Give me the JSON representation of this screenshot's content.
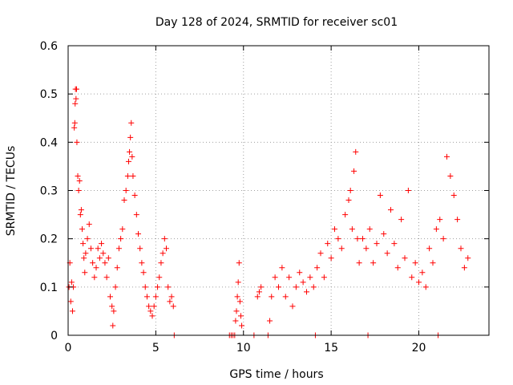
{
  "chart_data": {
    "type": "scatter",
    "title": "Day 128 of 2024, SRMTID for receiver sc01",
    "xlabel": "GPS time / hours",
    "ylabel": "SRMTID / TECUs",
    "xlim": [
      0,
      24
    ],
    "ylim": [
      0,
      0.6
    ],
    "xticks": [
      0,
      5,
      10,
      15,
      20
    ],
    "yticks": [
      0,
      0.1,
      0.2,
      0.3,
      0.4,
      0.5,
      0.6
    ],
    "xtick_labels": [
      "0",
      "5",
      "10",
      "15",
      "20"
    ],
    "ytick_labels": [
      "0",
      "0.1",
      "0.2",
      "0.3",
      "0.4",
      "0.5",
      "0.6"
    ],
    "grid": true,
    "marker": "+",
    "color": "#ff0000",
    "series": [
      {
        "name": "SRMTID",
        "points": [
          [
            0.05,
            0.1
          ],
          [
            0.1,
            0.15
          ],
          [
            0.15,
            0.07
          ],
          [
            0.2,
            0.11
          ],
          [
            0.25,
            0.05
          ],
          [
            0.3,
            0.1
          ],
          [
            0.35,
            0.43
          ],
          [
            0.38,
            0.44
          ],
          [
            0.4,
            0.48
          ],
          [
            0.42,
            0.51
          ],
          [
            0.45,
            0.49
          ],
          [
            0.48,
            0.51
          ],
          [
            0.5,
            0.4
          ],
          [
            0.55,
            0.33
          ],
          [
            0.6,
            0.3
          ],
          [
            0.65,
            0.32
          ],
          [
            0.7,
            0.25
          ],
          [
            0.75,
            0.26
          ],
          [
            0.8,
            0.22
          ],
          [
            0.85,
            0.19
          ],
          [
            0.9,
            0.16
          ],
          [
            0.95,
            0.13
          ],
          [
            1.0,
            0.17
          ],
          [
            1.1,
            0.2
          ],
          [
            1.2,
            0.23
          ],
          [
            1.3,
            0.18
          ],
          [
            1.4,
            0.15
          ],
          [
            1.5,
            0.12
          ],
          [
            1.6,
            0.14
          ],
          [
            1.7,
            0.18
          ],
          [
            1.8,
            0.16
          ],
          [
            1.9,
            0.19
          ],
          [
            2.0,
            0.17
          ],
          [
            2.1,
            0.15
          ],
          [
            2.2,
            0.12
          ],
          [
            2.3,
            0.16
          ],
          [
            2.4,
            0.08
          ],
          [
            2.5,
            0.06
          ],
          [
            2.55,
            0.02
          ],
          [
            2.6,
            0.05
          ],
          [
            2.7,
            0.1
          ],
          [
            2.8,
            0.14
          ],
          [
            2.9,
            0.18
          ],
          [
            3.0,
            0.2
          ],
          [
            3.1,
            0.22
          ],
          [
            3.2,
            0.28
          ],
          [
            3.3,
            0.3
          ],
          [
            3.4,
            0.33
          ],
          [
            3.45,
            0.36
          ],
          [
            3.5,
            0.38
          ],
          [
            3.55,
            0.41
          ],
          [
            3.6,
            0.44
          ],
          [
            3.65,
            0.37
          ],
          [
            3.7,
            0.33
          ],
          [
            3.8,
            0.29
          ],
          [
            3.9,
            0.25
          ],
          [
            4.0,
            0.21
          ],
          [
            4.1,
            0.18
          ],
          [
            4.2,
            0.15
          ],
          [
            4.3,
            0.13
          ],
          [
            4.4,
            0.1
          ],
          [
            4.5,
            0.08
          ],
          [
            4.6,
            0.06
          ],
          [
            4.7,
            0.05
          ],
          [
            4.8,
            0.04
          ],
          [
            4.9,
            0.06
          ],
          [
            5.0,
            0.08
          ],
          [
            5.1,
            0.1
          ],
          [
            5.2,
            0.12
          ],
          [
            5.3,
            0.15
          ],
          [
            5.4,
            0.17
          ],
          [
            5.5,
            0.2
          ],
          [
            5.6,
            0.18
          ],
          [
            5.7,
            0.1
          ],
          [
            5.8,
            0.07
          ],
          [
            5.9,
            0.08
          ],
          [
            6.0,
            0.06
          ],
          [
            6.05,
            0.0
          ],
          [
            9.2,
            0.0
          ],
          [
            9.3,
            0.0
          ],
          [
            9.4,
            0.0
          ],
          [
            9.5,
            0.0
          ],
          [
            9.55,
            0.03
          ],
          [
            9.6,
            0.05
          ],
          [
            9.65,
            0.08
          ],
          [
            9.7,
            0.11
          ],
          [
            9.75,
            0.15
          ],
          [
            9.8,
            0.07
          ],
          [
            9.85,
            0.04
          ],
          [
            9.9,
            0.02
          ],
          [
            10.6,
            0.0
          ],
          [
            10.8,
            0.08
          ],
          [
            10.9,
            0.09
          ],
          [
            11.0,
            0.1
          ],
          [
            11.4,
            0.0
          ],
          [
            11.5,
            0.03
          ],
          [
            11.6,
            0.08
          ],
          [
            11.8,
            0.12
          ],
          [
            12.0,
            0.1
          ],
          [
            12.2,
            0.14
          ],
          [
            12.4,
            0.08
          ],
          [
            12.6,
            0.12
          ],
          [
            12.8,
            0.06
          ],
          [
            13.0,
            0.1
          ],
          [
            13.2,
            0.13
          ],
          [
            13.4,
            0.11
          ],
          [
            13.6,
            0.09
          ],
          [
            13.8,
            0.12
          ],
          [
            14.0,
            0.1
          ],
          [
            14.1,
            0.0
          ],
          [
            14.2,
            0.14
          ],
          [
            14.4,
            0.17
          ],
          [
            14.6,
            0.12
          ],
          [
            14.8,
            0.19
          ],
          [
            15.0,
            0.16
          ],
          [
            15.2,
            0.22
          ],
          [
            15.4,
            0.2
          ],
          [
            15.6,
            0.18
          ],
          [
            15.8,
            0.25
          ],
          [
            16.0,
            0.28
          ],
          [
            16.1,
            0.3
          ],
          [
            16.2,
            0.22
          ],
          [
            16.3,
            0.34
          ],
          [
            16.4,
            0.38
          ],
          [
            16.5,
            0.2
          ],
          [
            16.6,
            0.15
          ],
          [
            16.8,
            0.2
          ],
          [
            17.0,
            0.18
          ],
          [
            17.1,
            0.0
          ],
          [
            17.2,
            0.22
          ],
          [
            17.4,
            0.15
          ],
          [
            17.6,
            0.19
          ],
          [
            17.8,
            0.29
          ],
          [
            18.0,
            0.21
          ],
          [
            18.2,
            0.17
          ],
          [
            18.4,
            0.26
          ],
          [
            18.6,
            0.19
          ],
          [
            18.8,
            0.14
          ],
          [
            19.0,
            0.24
          ],
          [
            19.2,
            0.16
          ],
          [
            19.4,
            0.3
          ],
          [
            19.6,
            0.12
          ],
          [
            19.8,
            0.15
          ],
          [
            20.0,
            0.11
          ],
          [
            20.2,
            0.13
          ],
          [
            20.4,
            0.1
          ],
          [
            20.6,
            0.18
          ],
          [
            20.8,
            0.15
          ],
          [
            21.0,
            0.22
          ],
          [
            21.1,
            0.0
          ],
          [
            21.2,
            0.24
          ],
          [
            21.4,
            0.2
          ],
          [
            21.6,
            0.37
          ],
          [
            21.8,
            0.33
          ],
          [
            22.0,
            0.29
          ],
          [
            22.2,
            0.24
          ],
          [
            22.4,
            0.18
          ],
          [
            22.6,
            0.14
          ],
          [
            22.8,
            0.16
          ]
        ]
      }
    ]
  }
}
